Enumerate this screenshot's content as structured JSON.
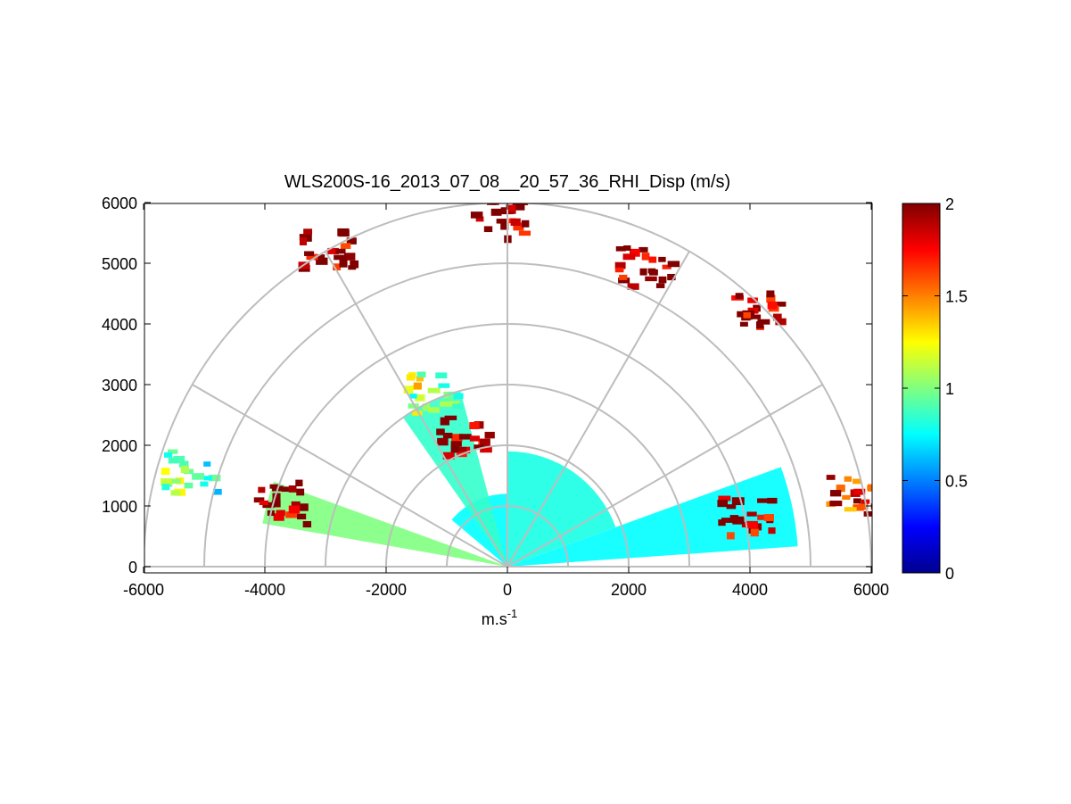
{
  "chart_data": {
    "type": "heatmap",
    "subtype": "polar RHI",
    "title": "WLS200S-16_2013_07_08__20_57_36_RHI_Disp (m/s)",
    "xlabel": "m.s",
    "xlabel_exponent": "-1",
    "ylabel": "",
    "xlim": [
      -6000,
      6000
    ],
    "ylim": [
      0,
      6000
    ],
    "x_ticks": [
      -6000,
      -4000,
      -2000,
      0,
      2000,
      4000,
      6000
    ],
    "y_ticks": [
      0,
      1000,
      2000,
      3000,
      4000,
      5000,
      6000
    ],
    "x_tick_labels": [
      "-6000",
      "-4000",
      "-2000",
      "0",
      "2000",
      "4000",
      "6000"
    ],
    "y_tick_labels": [
      "0",
      "1000",
      "2000",
      "3000",
      "4000",
      "5000",
      "6000"
    ],
    "polar_grid": {
      "range_rings": [
        1000,
        2000,
        3000,
        4000,
        5000,
        6000
      ],
      "spokes_deg": [
        0,
        30,
        60,
        90,
        120,
        150,
        180
      ]
    },
    "colorbar": {
      "colormap": "jet",
      "range": [
        0,
        2
      ],
      "ticks": [
        0,
        0.5,
        1,
        1.5,
        2
      ],
      "tick_labels": [
        "0",
        "0.5",
        "1",
        "1.5",
        "2"
      ]
    },
    "sectors": [
      {
        "from_deg": 4,
        "to_deg": 20,
        "max_range": 4800,
        "value": 0.75
      },
      {
        "from_deg": 20,
        "to_deg": 90,
        "max_range": 1900,
        "value": 0.8
      },
      {
        "from_deg": 90,
        "to_deg": 140,
        "max_range": 1200,
        "value": 0.75
      },
      {
        "from_deg": 105,
        "to_deg": 125,
        "max_range": 3000,
        "value": 0.85
      },
      {
        "from_deg": 160,
        "to_deg": 170,
        "max_range": 4100,
        "value": 1.0
      }
    ],
    "clusters": [
      {
        "x": -800,
        "y": 2200,
        "value": 2.0
      },
      {
        "x": 3900,
        "y": 900,
        "value": 2.0
      },
      {
        "x": -3800,
        "y": 1100,
        "value": 2.0
      },
      {
        "x": -1300,
        "y": 2900,
        "value": 1.1
      },
      {
        "x": -200,
        "y": 5800,
        "value": 2.0
      },
      {
        "x": 2200,
        "y": 5000,
        "value": 2.0
      },
      {
        "x": 4000,
        "y": 4300,
        "value": 2.0
      },
      {
        "x": -3000,
        "y": 5300,
        "value": 2.0
      },
      {
        "x": 5700,
        "y": 1200,
        "value": 1.7
      },
      {
        "x": -5300,
        "y": 1600,
        "value": 0.9
      }
    ]
  }
}
